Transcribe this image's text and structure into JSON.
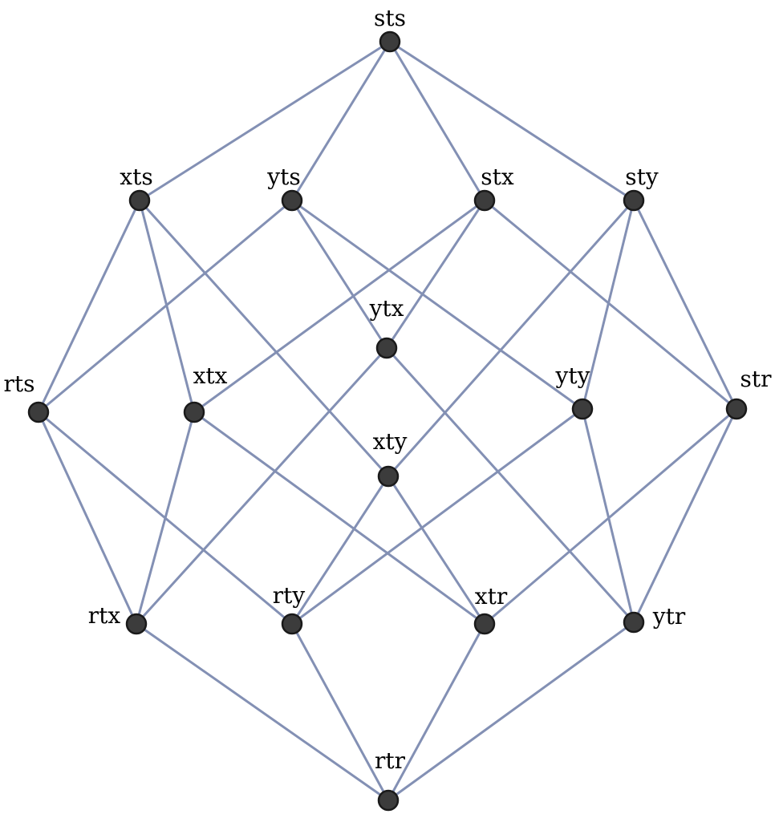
{
  "graph": {
    "nodes": [
      {
        "id": "sts",
        "label": "sts"
      },
      {
        "id": "xts",
        "label": "xts"
      },
      {
        "id": "yts",
        "label": "yts"
      },
      {
        "id": "stx",
        "label": "stx"
      },
      {
        "id": "sty",
        "label": "sty"
      },
      {
        "id": "ytx",
        "label": "ytx"
      },
      {
        "id": "rts",
        "label": "rts"
      },
      {
        "id": "xtx",
        "label": "xtx"
      },
      {
        "id": "yty",
        "label": "yty"
      },
      {
        "id": "str",
        "label": "str"
      },
      {
        "id": "xty",
        "label": "xty"
      },
      {
        "id": "rtx",
        "label": "rtx"
      },
      {
        "id": "rty",
        "label": "rty"
      },
      {
        "id": "xtr",
        "label": "xtr"
      },
      {
        "id": "ytr",
        "label": "ytr"
      },
      {
        "id": "rtr",
        "label": "rtr"
      }
    ],
    "edges": [
      [
        "sts",
        "xts"
      ],
      [
        "sts",
        "yts"
      ],
      [
        "sts",
        "stx"
      ],
      [
        "sts",
        "sty"
      ],
      [
        "xts",
        "rts"
      ],
      [
        "xts",
        "xtx"
      ],
      [
        "xts",
        "xty"
      ],
      [
        "yts",
        "rts"
      ],
      [
        "yts",
        "ytx"
      ],
      [
        "yts",
        "yty"
      ],
      [
        "stx",
        "xtx"
      ],
      [
        "stx",
        "ytx"
      ],
      [
        "stx",
        "str"
      ],
      [
        "sty",
        "xty"
      ],
      [
        "sty",
        "yty"
      ],
      [
        "sty",
        "str"
      ],
      [
        "rts",
        "rtx"
      ],
      [
        "rts",
        "rty"
      ],
      [
        "xtx",
        "rtx"
      ],
      [
        "xtx",
        "xtr"
      ],
      [
        "ytx",
        "rtx"
      ],
      [
        "ytx",
        "ytr"
      ],
      [
        "yty",
        "rty"
      ],
      [
        "yty",
        "ytr"
      ],
      [
        "str",
        "xtr"
      ],
      [
        "str",
        "ytr"
      ],
      [
        "xty",
        "rty"
      ],
      [
        "xty",
        "xtr"
      ],
      [
        "rtx",
        "rtr"
      ],
      [
        "rty",
        "rtr"
      ],
      [
        "xtr",
        "rtr"
      ],
      [
        "ytr",
        "rtr"
      ]
    ]
  }
}
